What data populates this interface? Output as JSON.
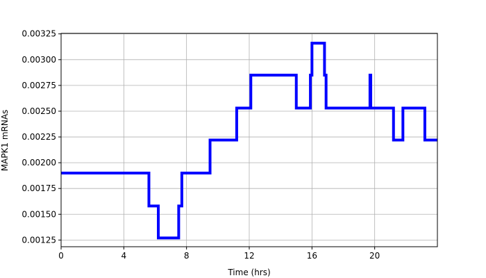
{
  "chart_data": {
    "type": "line",
    "title": "",
    "xlabel": "Time (hrs)",
    "ylabel": "MAPK1 mRNAs",
    "xlim": [
      0,
      24
    ],
    "ylim": [
      0.001185,
      0.003255
    ],
    "grid": true,
    "x_ticks": [
      0,
      4,
      8,
      12,
      16,
      20
    ],
    "x_tick_labels": [
      "0",
      "4",
      "8",
      "12",
      "16",
      "20"
    ],
    "y_ticks": [
      0.00125,
      0.0015,
      0.00175,
      0.002,
      0.00225,
      0.0025,
      0.00275,
      0.003,
      0.00325
    ],
    "y_tick_labels": [
      "0.00125",
      "0.00150",
      "0.00175",
      "0.00200",
      "0.00225",
      "0.00250",
      "0.00275",
      "0.00300",
      "0.00325"
    ],
    "series": [
      {
        "color": "#0000ff",
        "step": true,
        "x": [
          0,
          5.6,
          6.2,
          7.5,
          7.7,
          9.5,
          11.2,
          12.1,
          15.0,
          15.9,
          16.0,
          16.8,
          16.9,
          19.7,
          19.75,
          19.8,
          21.2,
          21.8,
          23.2,
          24
        ],
        "y": [
          0.0019,
          0.00158,
          0.00127,
          0.00158,
          0.0019,
          0.00222,
          0.00253,
          0.00285,
          0.00253,
          0.00285,
          0.00316,
          0.00285,
          0.00253,
          0.00285,
          0.00253,
          0.00253,
          0.00222,
          0.00253,
          0.00222,
          0.00222
        ]
      }
    ]
  }
}
